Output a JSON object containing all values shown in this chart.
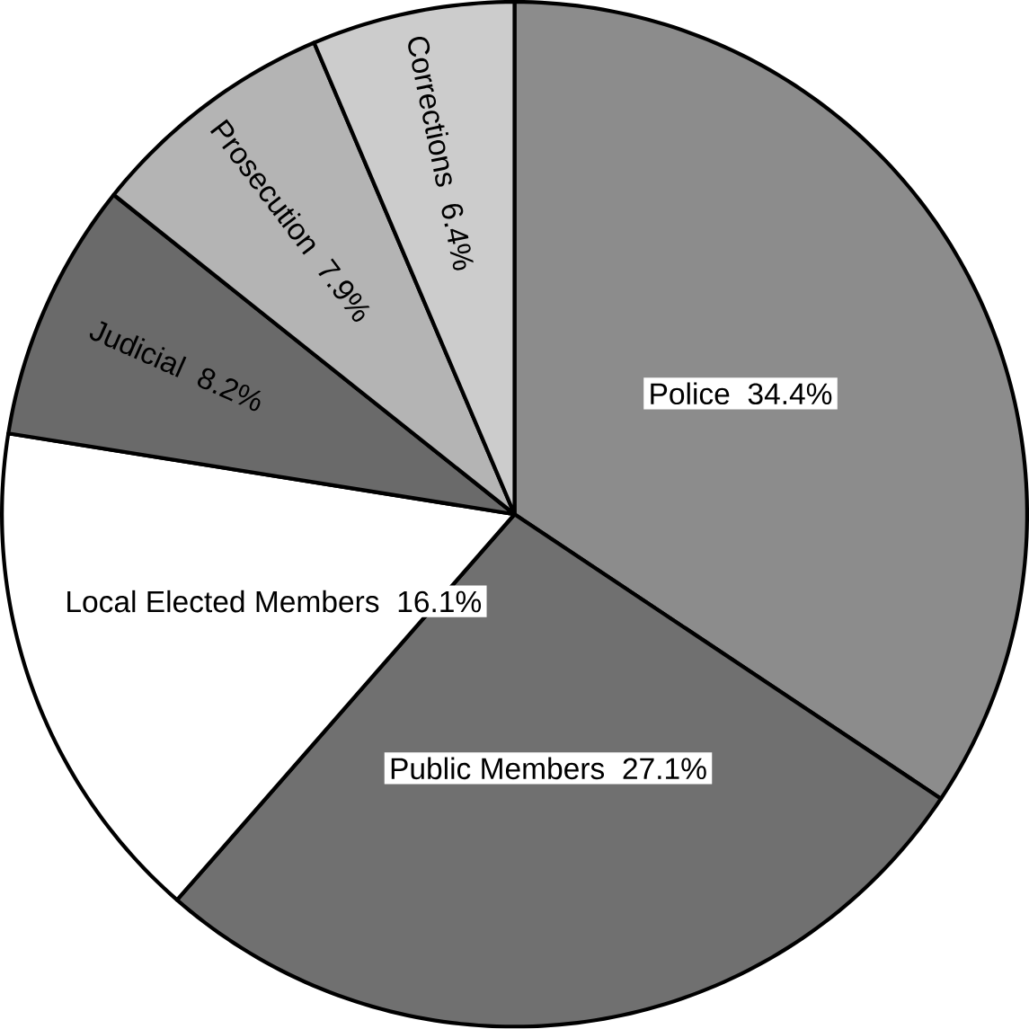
{
  "chart_data": {
    "type": "pie",
    "categories": [
      "Police",
      "Public Members",
      "Local Elected Members",
      "Judicial",
      "Prosecution",
      "Corrections"
    ],
    "values": [
      34.4,
      27.1,
      16.1,
      8.2,
      7.9,
      6.4
    ],
    "value_labels": [
      "34.4%",
      "27.1%",
      "16.1%",
      "8.2%",
      "7.9%",
      "6.4%"
    ],
    "colors": [
      "#8c8c8c",
      "#707070",
      "#ffffff",
      "#6a6a6a",
      "#b4b4b4",
      "#cccccc"
    ]
  }
}
